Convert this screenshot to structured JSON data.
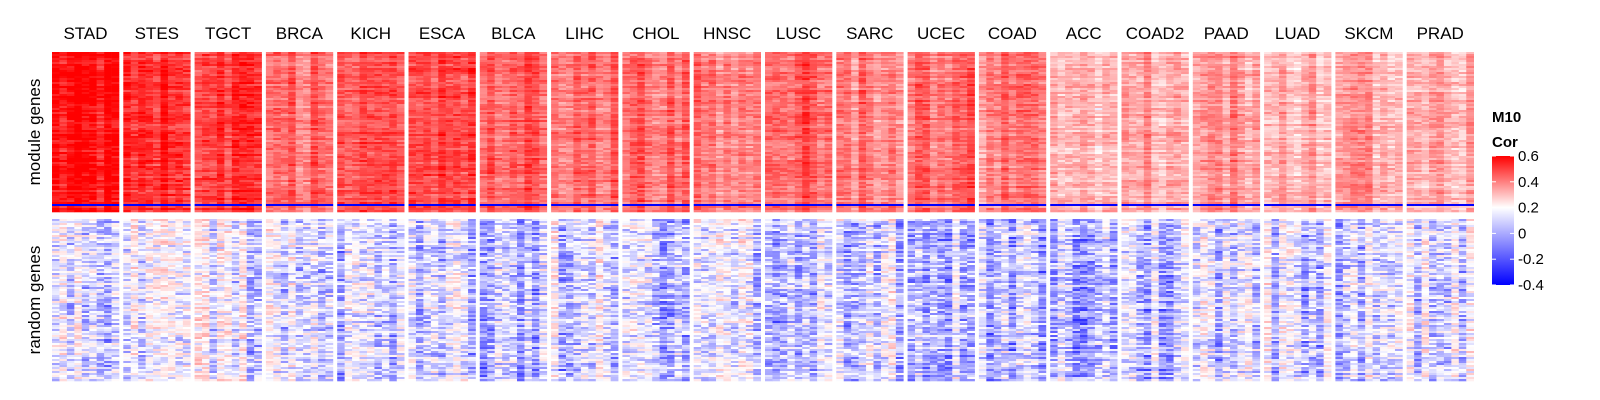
{
  "chart_data": {
    "type": "heatmap",
    "title": "",
    "columns": [
      "STAD",
      "STES",
      "TGCT",
      "BRCA",
      "KICH",
      "ESCA",
      "BLCA",
      "LIHC",
      "CHOL",
      "HNSC",
      "LUSC",
      "SARC",
      "UCEC",
      "COAD",
      "ACC",
      "COAD2",
      "PAAD",
      "LUAD",
      "SKCM",
      "PRAD"
    ],
    "row_groups": [
      "module genes",
      "random genes"
    ],
    "mean_correlation": {
      "module genes": [
        0.55,
        0.52,
        0.45,
        0.35,
        0.45,
        0.42,
        0.38,
        0.36,
        0.35,
        0.32,
        0.38,
        0.3,
        0.35,
        0.3,
        0.15,
        0.22,
        0.25,
        0.2,
        0.22,
        0.2
      ],
      "random genes": [
        -0.05,
        -0.05,
        -0.02,
        -0.05,
        -0.05,
        -0.05,
        -0.08,
        -0.05,
        -0.08,
        -0.05,
        -0.06,
        -0.05,
        -0.08,
        -0.08,
        -0.1,
        -0.08,
        -0.06,
        -0.05,
        -0.06,
        -0.05
      ]
    },
    "legend": {
      "title_line1": "M10",
      "title_line2": "Cor",
      "ticks": [
        0.6,
        0.4,
        0.2,
        0,
        -0.2,
        -0.4
      ],
      "tick_labels": [
        "0.6",
        "0.4",
        "0.2",
        "0",
        "-0.2",
        "-0.4"
      ],
      "range": [
        -0.4,
        0.6
      ],
      "colors": {
        "low": "#0000ff",
        "mid": "#ffffff",
        "high": "#ff0000"
      },
      "placement": "right"
    }
  }
}
